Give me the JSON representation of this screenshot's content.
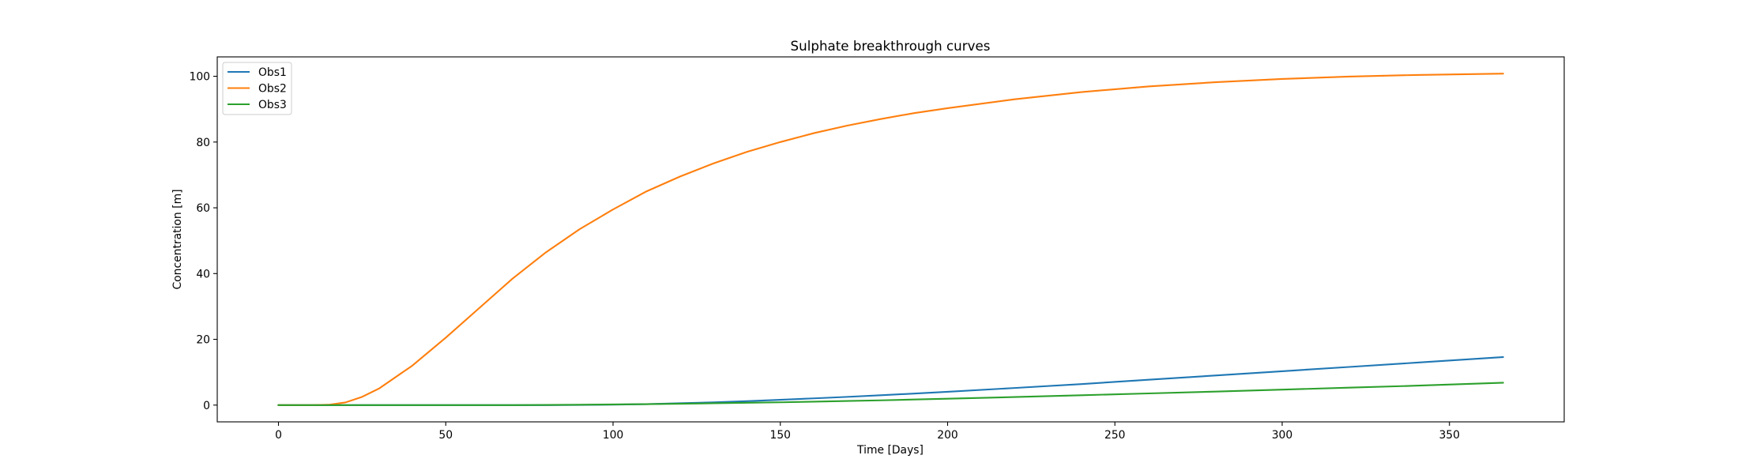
{
  "chart_data": {
    "type": "line",
    "title": "Sulphate breakthrough curves",
    "xlabel": "Time [Days]",
    "ylabel": "Concentration [m]",
    "xlim": [
      -18.3,
      384.3
    ],
    "ylim": [
      -5.1,
      105.9
    ],
    "xticks": [
      0,
      50,
      100,
      150,
      200,
      250,
      300,
      350
    ],
    "yticks": [
      0,
      20,
      40,
      60,
      80,
      100
    ],
    "grid": false,
    "legend_position": "top-left",
    "x": [
      0,
      10,
      15,
      20,
      25,
      30,
      40,
      50,
      60,
      70,
      80,
      90,
      100,
      110,
      120,
      130,
      140,
      150,
      160,
      170,
      180,
      190,
      200,
      220,
      240,
      260,
      280,
      300,
      320,
      340,
      366
    ],
    "series": [
      {
        "name": "Obs1",
        "color": "#1f77b4",
        "values": [
          0,
          0,
          0,
          0,
          0,
          0,
          0,
          0,
          0,
          0,
          0,
          0.05,
          0.15,
          0.3,
          0.55,
          0.85,
          1.2,
          1.6,
          2.05,
          2.5,
          3.0,
          3.5,
          4.05,
          5.2,
          6.4,
          7.7,
          9.0,
          10.3,
          11.6,
          12.9,
          14.6
        ]
      },
      {
        "name": "Obs2",
        "color": "#ff7f0e",
        "values": [
          0,
          0,
          0.1,
          0.8,
          2.5,
          5.0,
          12.0,
          20.5,
          29.5,
          38.5,
          46.5,
          53.5,
          59.5,
          65.0,
          69.5,
          73.5,
          77.0,
          80.0,
          82.7,
          85.0,
          87.0,
          88.8,
          90.3,
          93.0,
          95.2,
          96.9,
          98.2,
          99.2,
          99.9,
          100.4,
          100.8
        ]
      },
      {
        "name": "Obs3",
        "color": "#2ca02c",
        "values": [
          0,
          0,
          0,
          0,
          0,
          0,
          0,
          0,
          0,
          0,
          0.05,
          0.1,
          0.2,
          0.3,
          0.4,
          0.55,
          0.7,
          0.85,
          1.05,
          1.25,
          1.45,
          1.7,
          1.95,
          2.45,
          3.0,
          3.55,
          4.1,
          4.7,
          5.3,
          5.9,
          6.8
        ]
      }
    ]
  }
}
